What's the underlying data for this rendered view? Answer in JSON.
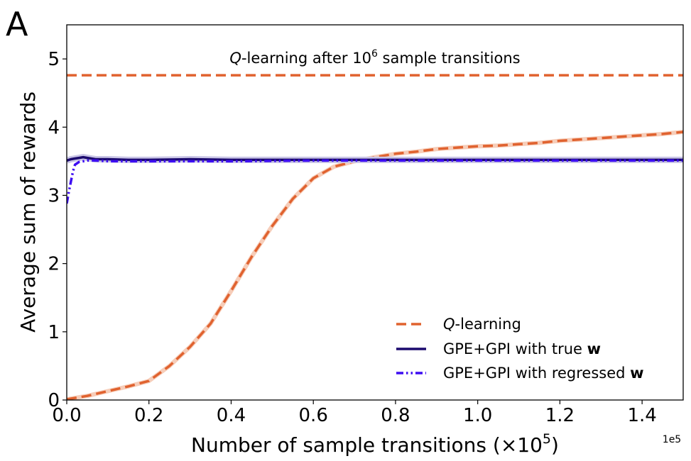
{
  "panel_label": "A",
  "chart_data": {
    "type": "line",
    "title": "",
    "xlabel_main": "Number of sample transitions (×10",
    "xlabel_sup": "5",
    "xlabel_end": ")",
    "x_offset_label": "1e5",
    "ylabel": "Average sum of rewards",
    "xlim": [
      0,
      1.5
    ],
    "ylim": [
      0,
      5.5
    ],
    "x_ticks": [
      0.0,
      0.2,
      0.4,
      0.6,
      0.8,
      1.0,
      1.2,
      1.4
    ],
    "x_tick_labels": [
      "0.0",
      "0.2",
      "0.4",
      "0.6",
      "0.8",
      "1.0",
      "1.2",
      "1.4"
    ],
    "y_ticks": [
      0,
      1,
      2,
      3,
      4,
      5
    ],
    "y_tick_labels": [
      "0",
      "1",
      "2",
      "3",
      "4",
      "5"
    ],
    "grid": false,
    "legend_position": "bottom-right",
    "annotation": {
      "prefix": "Q",
      "text": "-learning after 10",
      "sup": "6",
      "suffix": " sample transitions",
      "x": 0.75,
      "y": 4.94
    },
    "reference_line": {
      "name": "Q-learning after 10^6 sample transitions",
      "y": 4.76,
      "color": "#e0622f"
    },
    "series": [
      {
        "name": "Q-learning",
        "legend_italic": "Q",
        "legend_rest": "-learning",
        "legend_bold": "",
        "color": "#e0622f",
        "style": "dashed",
        "x": [
          0.0,
          0.02,
          0.05,
          0.1,
          0.15,
          0.2,
          0.25,
          0.3,
          0.35,
          0.4,
          0.45,
          0.5,
          0.55,
          0.6,
          0.65,
          0.7,
          0.75,
          0.8,
          0.85,
          0.9,
          0.95,
          1.0,
          1.05,
          1.1,
          1.15,
          1.2,
          1.25,
          1.3,
          1.35,
          1.4,
          1.45,
          1.5
        ],
        "values": [
          0.01,
          0.03,
          0.06,
          0.13,
          0.2,
          0.28,
          0.5,
          0.78,
          1.12,
          1.6,
          2.1,
          2.55,
          2.95,
          3.25,
          3.42,
          3.5,
          3.56,
          3.61,
          3.64,
          3.68,
          3.7,
          3.72,
          3.73,
          3.75,
          3.77,
          3.8,
          3.82,
          3.84,
          3.86,
          3.88,
          3.9,
          3.93
        ]
      },
      {
        "name": "GPE+GPI with true w",
        "legend_italic": "",
        "legend_rest": "GPE+GPI with true ",
        "legend_bold": "w",
        "color": "#1b0a6e",
        "style": "solid",
        "x": [
          0.0,
          0.01,
          0.02,
          0.03,
          0.04,
          0.05,
          0.07,
          0.1,
          0.15,
          0.2,
          0.3,
          0.4,
          0.5,
          0.6,
          0.8,
          1.0,
          1.2,
          1.4,
          1.5
        ],
        "values": [
          3.51,
          3.53,
          3.54,
          3.55,
          3.56,
          3.55,
          3.53,
          3.53,
          3.52,
          3.52,
          3.53,
          3.52,
          3.52,
          3.52,
          3.52,
          3.52,
          3.52,
          3.52,
          3.52
        ]
      },
      {
        "name": "GPE+GPI with regressed w",
        "legend_italic": "",
        "legend_rest": "GPE+GPI with regressed ",
        "legend_bold": "w",
        "color": "#3d0df2",
        "style": "dashdotdot",
        "x": [
          0.0,
          0.005,
          0.01,
          0.015,
          0.02,
          0.03,
          0.04,
          0.05,
          0.07,
          0.1,
          0.2,
          0.4,
          0.6,
          0.8,
          1.0,
          1.2,
          1.4,
          1.5
        ],
        "values": [
          2.88,
          3.05,
          3.2,
          3.35,
          3.45,
          3.49,
          3.5,
          3.51,
          3.51,
          3.5,
          3.5,
          3.5,
          3.51,
          3.51,
          3.51,
          3.51,
          3.51,
          3.51
        ]
      }
    ]
  }
}
